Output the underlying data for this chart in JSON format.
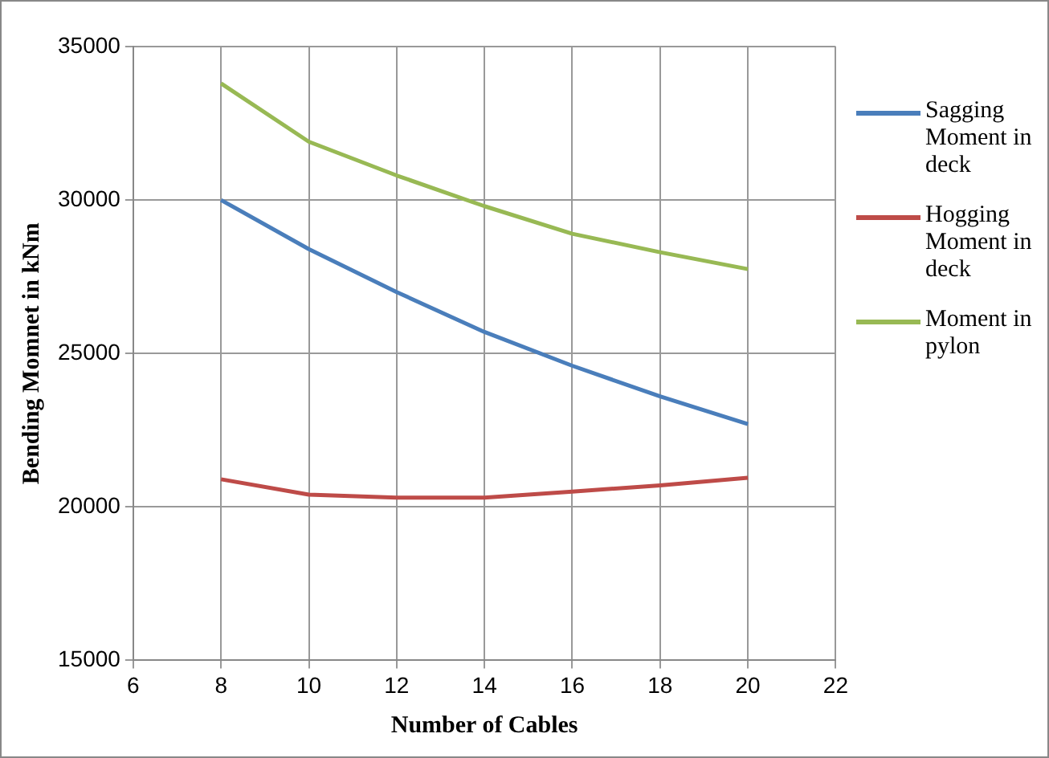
{
  "chart_data": {
    "type": "line",
    "xlabel": "Number of Cables",
    "ylabel": "Bending Momnet in kNm",
    "x": [
      8,
      10,
      12,
      14,
      16,
      18,
      20
    ],
    "series": [
      {
        "name": "Sagging Moment in deck",
        "color": "#4a7ebb",
        "values": [
          30000,
          28400,
          27000,
          25700,
          24600,
          23600,
          22700
        ]
      },
      {
        "name": "Hogging Moment in deck",
        "color": "#be4b48",
        "values": [
          20900,
          20400,
          20300,
          20300,
          20500,
          20700,
          20950
        ]
      },
      {
        "name": "Moment in pylon",
        "color": "#98b954",
        "values": [
          33800,
          31900,
          30800,
          29800,
          28900,
          28300,
          27750
        ]
      }
    ],
    "xlim": [
      6,
      22
    ],
    "xticks": [
      6,
      8,
      10,
      12,
      14,
      16,
      18,
      20,
      22
    ],
    "ylim": [
      15000,
      35000
    ],
    "yticks": [
      15000,
      20000,
      25000,
      30000,
      35000
    ],
    "grid": true,
    "legend": "right",
    "marker": "none",
    "line_style": "solid"
  }
}
